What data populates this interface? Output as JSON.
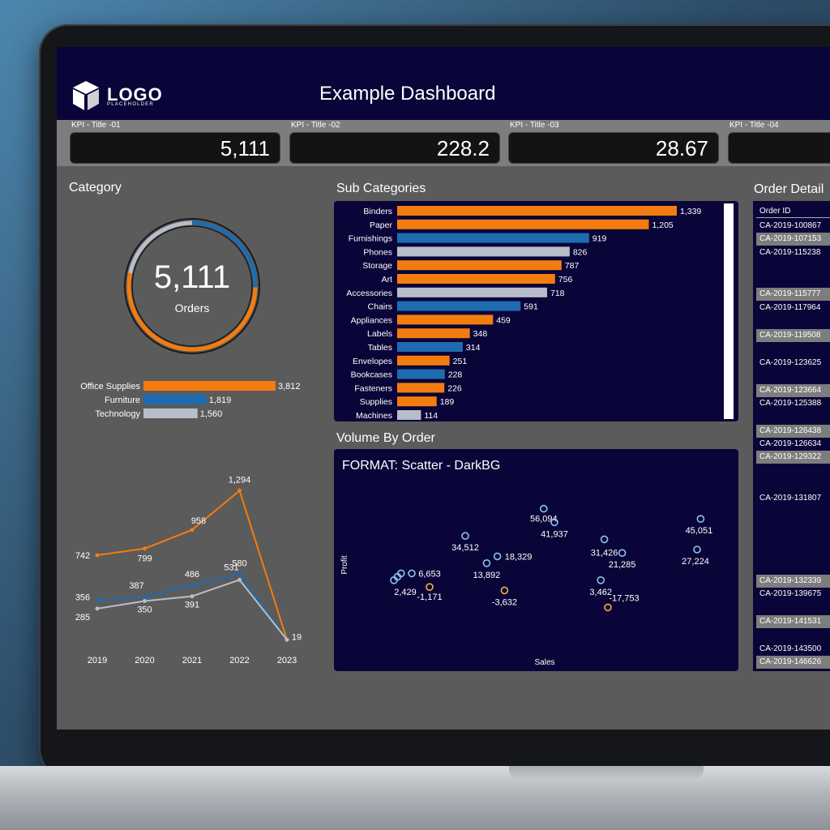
{
  "header": {
    "logo_text": "LOGO",
    "logo_sub": "PLACEHOLDER",
    "title": "Example Dashboard"
  },
  "kpis": [
    {
      "label": "KPI - Title -01",
      "value": "5,111"
    },
    {
      "label": "KPI - Title -02",
      "value": "228.2"
    },
    {
      "label": "KPI - Title -03",
      "value": "28.67"
    },
    {
      "label": "KPI - Title -04",
      "value": ""
    }
  ],
  "sections": {
    "category": "Category",
    "sub_categories": "Sub Categories",
    "volume_by_order": "Volume By Order",
    "order_detail": "Order Detail"
  },
  "donut": {
    "value": "5,111",
    "label": "Orders",
    "segments": [
      {
        "name": "Office Supplies",
        "value": 3812,
        "color": "#f47c0f"
      },
      {
        "name": "Furniture",
        "value": 1819,
        "color": "#1f6bb0"
      },
      {
        "name": "Technology",
        "value": 1560,
        "color": "#b8bec9"
      }
    ]
  },
  "colors": {
    "orange": "#f47c0f",
    "blue": "#1f6bb0",
    "grey": "#b8bec9",
    "navy": "#0a0538",
    "scatter_blue": "#8fc4ef",
    "scatter_yellow": "#f0b23c"
  },
  "chart_data": [
    {
      "type": "bar",
      "orientation": "horizontal",
      "categories": [
        "Office Supplies",
        "Furniture",
        "Technology"
      ],
      "values": [
        3812,
        1819,
        1560
      ],
      "value_labels": [
        "3,812",
        "1,819",
        "1,560"
      ],
      "colors": [
        "#f47c0f",
        "#1f6bb0",
        "#b8bec9"
      ]
    },
    {
      "type": "line",
      "x": [
        "2019",
        "2020",
        "2021",
        "2022",
        "2023"
      ],
      "series": [
        {
          "values": [
            742,
            799,
            958,
            1294,
            19
          ],
          "labels": [
            "742",
            "799",
            "958",
            "1,294",
            "19"
          ],
          "color": "#f47c0f"
        },
        {
          "values": [
            356,
            387,
            486,
            580,
            19
          ],
          "labels": [
            "356",
            "387",
            "486",
            "580",
            ""
          ],
          "color": "#1f6bb0"
        },
        {
          "values": [
            285,
            350,
            391,
            531,
            19
          ],
          "labels": [
            "285",
            "350",
            "391",
            "531",
            ""
          ],
          "color": "#b8bec9"
        }
      ],
      "ylim": [
        0,
        1400
      ]
    },
    {
      "type": "bar",
      "orientation": "horizontal",
      "title": "Sub Categories",
      "categories": [
        "Binders",
        "Paper",
        "Furnishings",
        "Phones",
        "Storage",
        "Art",
        "Accessories",
        "Chairs",
        "Appliances",
        "Labels",
        "Tables",
        "Envelopes",
        "Bookcases",
        "Fasteners",
        "Supplies",
        "Machines"
      ],
      "values": [
        1339,
        1205,
        919,
        826,
        787,
        756,
        718,
        591,
        459,
        348,
        314,
        251,
        228,
        226,
        189,
        114
      ],
      "value_labels": [
        "1,339",
        "1,205",
        "919",
        "826",
        "787",
        "756",
        "718",
        "591",
        "459",
        "348",
        "314",
        "251",
        "228",
        "226",
        "189",
        "114"
      ],
      "colors": [
        "#f47c0f",
        "#f47c0f",
        "#1f6bb0",
        "#b8bec9",
        "#f47c0f",
        "#f47c0f",
        "#b8bec9",
        "#1f6bb0",
        "#f47c0f",
        "#f47c0f",
        "#1f6bb0",
        "#f47c0f",
        "#1f6bb0",
        "#f47c0f",
        "#f47c0f",
        "#b8bec9"
      ]
    },
    {
      "type": "scatter",
      "title": "FORMAT: Scatter - DarkBG",
      "xlabel": "Sales",
      "ylabel": "Profit",
      "points": [
        {
          "x": 5.2,
          "y": 4.2,
          "label": "56,094",
          "color": "#8fc4ef"
        },
        {
          "x": 5.5,
          "y": 3.8,
          "label": "41,937",
          "color": "#8fc4ef"
        },
        {
          "x": 9.6,
          "y": 3.9,
          "label": "45,051",
          "color": "#8fc4ef"
        },
        {
          "x": 3.0,
          "y": 3.4,
          "label": "34,512",
          "color": "#8fc4ef"
        },
        {
          "x": 6.9,
          "y": 3.3,
          "label": "31,426",
          "color": "#8fc4ef"
        },
        {
          "x": 9.5,
          "y": 3.0,
          "label": "27,224",
          "color": "#8fc4ef"
        },
        {
          "x": 7.4,
          "y": 2.9,
          "label": "21,285",
          "color": "#8fc4ef"
        },
        {
          "x": 3.9,
          "y": 2.8,
          "label": "18,329",
          "color": "#8fc4ef"
        },
        {
          "x": 3.6,
          "y": 2.6,
          "label": "13,892",
          "color": "#8fc4ef"
        },
        {
          "x": 1.5,
          "y": 2.3,
          "label": "6,653",
          "color": "#8fc4ef"
        },
        {
          "x": 1.2,
          "y": 2.3,
          "color": "#8fc4ef"
        },
        {
          "x": 1.1,
          "y": 2.2,
          "color": "#8fc4ef"
        },
        {
          "x": 1.0,
          "y": 2.1,
          "label": "2,429",
          "color": "#8fc4ef"
        },
        {
          "x": 2.0,
          "y": 1.9,
          "label": "-1,171",
          "color": "#f0b23c"
        },
        {
          "x": 4.1,
          "y": 1.8,
          "label": "-3,632",
          "color": "#f0b23c"
        },
        {
          "x": 6.8,
          "y": 2.1,
          "label": "3,462",
          "color": "#8fc4ef"
        },
        {
          "x": 7.0,
          "y": 1.3,
          "label": "-17,753",
          "color": "#f0b23c"
        }
      ]
    }
  ],
  "orders": {
    "header": "Order ID",
    "rows": [
      {
        "id": "CA-2019-100867",
        "grey": false,
        "slot": 1
      },
      {
        "id": "CA-2019-107153",
        "grey": true,
        "slot": 2
      },
      {
        "id": "CA-2019-115238",
        "grey": false,
        "slot": 3
      },
      {
        "id": "CA-2019-115777",
        "grey": true,
        "slot": 6.2
      },
      {
        "id": "CA-2019-117964",
        "grey": false,
        "slot": 7.2
      },
      {
        "id": "CA-2019-119508",
        "grey": true,
        "slot": 9.3
      },
      {
        "id": "CA-2019-123625",
        "grey": false,
        "slot": 11.4
      },
      {
        "id": "CA-2019-123664",
        "grey": true,
        "slot": 13.5
      },
      {
        "id": "CA-2019-125388",
        "grey": false,
        "slot": 14.5
      },
      {
        "id": "CA-2019-126438",
        "grey": true,
        "slot": 16.6
      },
      {
        "id": "CA-2019-126634",
        "grey": false,
        "slot": 17.6
      },
      {
        "id": "CA-2019-129322",
        "grey": true,
        "slot": 18.6
      },
      {
        "id": "CA-2019-131807",
        "grey": false,
        "slot": 21.7
      },
      {
        "id": "CA-2019-132339",
        "grey": true,
        "slot": 28.0
      },
      {
        "id": "CA-2019-139675",
        "grey": false,
        "slot": 29.0
      },
      {
        "id": "CA-2019-141531",
        "grey": true,
        "slot": 31.1
      },
      {
        "id": "CA-2019-143500",
        "grey": false,
        "slot": 33.2
      },
      {
        "id": "CA-2019-146626",
        "grey": true,
        "slot": 34.2
      }
    ]
  }
}
